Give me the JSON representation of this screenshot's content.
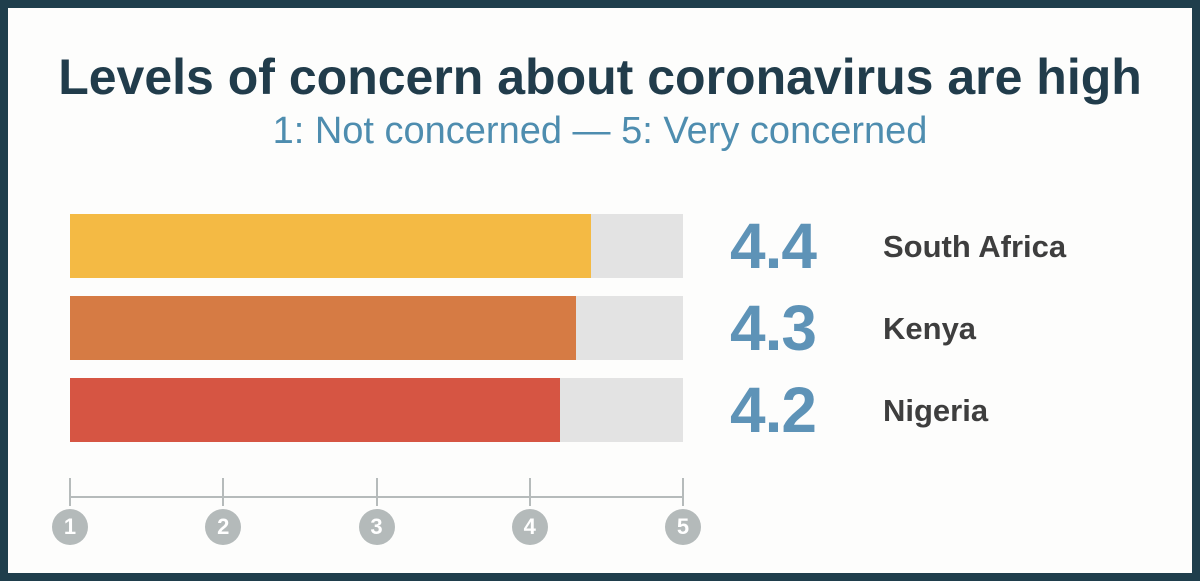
{
  "card": {
    "border_color": "#1f3e4c",
    "background_color": "#fdfdfc"
  },
  "header": {
    "title": "Levels of concern about coronavirus are high",
    "subtitle": "1: Not concerned — 5: Very concerned",
    "title_color": "#213c4b",
    "subtitle_color": "#4e8daf"
  },
  "chart_data": {
    "type": "bar",
    "orientation": "horizontal",
    "title": "Levels of concern about coronavirus are high",
    "subtitle": "1: Not concerned — 5: Very concerned",
    "categories": [
      "South Africa",
      "Kenya",
      "Nigeria"
    ],
    "values": [
      4.4,
      4.3,
      4.2
    ],
    "value_labels": [
      "4.4",
      "4.3",
      "4.2"
    ],
    "bar_colors": [
      "#f4ba44",
      "#d67b44",
      "#d65543"
    ],
    "track_color": "#e3e3e3",
    "value_text_color": "#5e93b7",
    "category_text_color": "#3e3e3e",
    "grid": false,
    "legend": false,
    "axis": {
      "min": 1,
      "max": 5,
      "ticks": [
        "1",
        "2",
        "3",
        "4",
        "5"
      ],
      "line_color": "#b6bbbb",
      "marker_fill_color": "#b4baba",
      "marker_text_color": "#ffffff"
    }
  }
}
